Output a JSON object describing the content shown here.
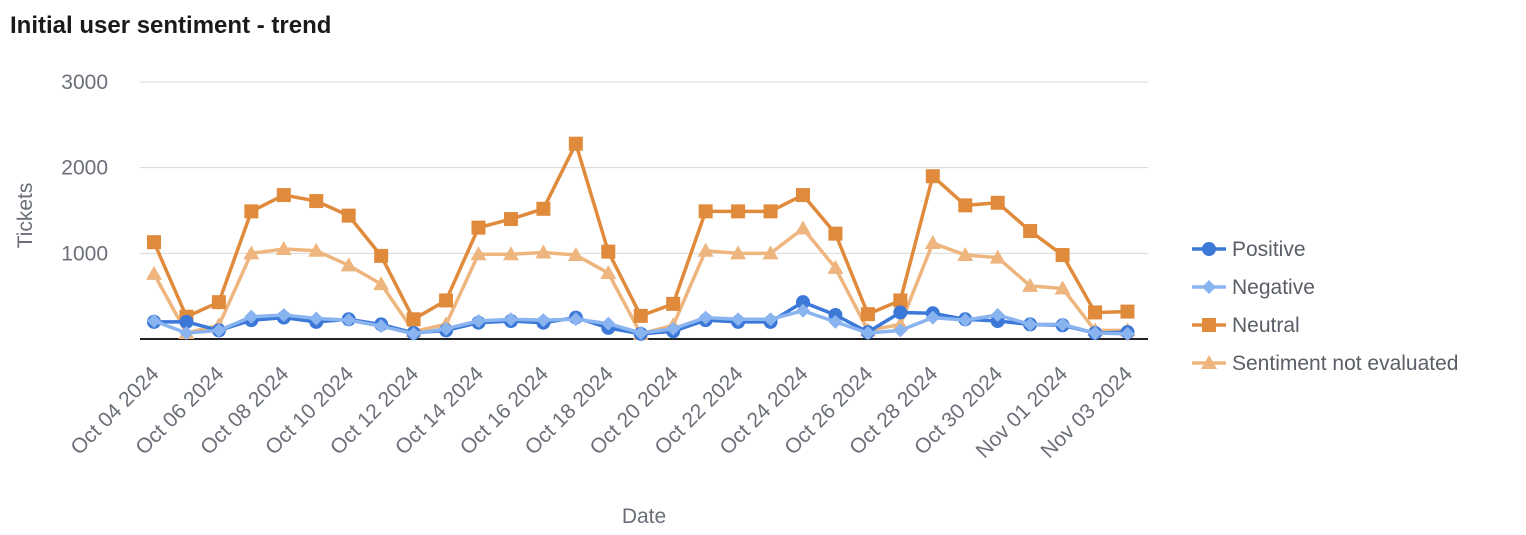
{
  "chart_data": {
    "type": "line",
    "title": "Initial user sentiment - trend",
    "xlabel": "Date",
    "ylabel": "Tickets",
    "ylim": [
      0,
      3000
    ],
    "yticks": [
      1000,
      2000,
      3000
    ],
    "grid": true,
    "legend_position": "right",
    "x": [
      "Oct 04 2024",
      "Oct 05 2024",
      "Oct 06 2024",
      "Oct 07 2024",
      "Oct 08 2024",
      "Oct 09 2024",
      "Oct 10 2024",
      "Oct 11 2024",
      "Oct 12 2024",
      "Oct 13 2024",
      "Oct 14 2024",
      "Oct 15 2024",
      "Oct 16 2024",
      "Oct 17 2024",
      "Oct 18 2024",
      "Oct 19 2024",
      "Oct 20 2024",
      "Oct 21 2024",
      "Oct 22 2024",
      "Oct 23 2024",
      "Oct 24 2024",
      "Oct 25 2024",
      "Oct 26 2024",
      "Oct 27 2024",
      "Oct 28 2024",
      "Oct 29 2024",
      "Oct 30 2024",
      "Oct 31 2024",
      "Nov 01 2024",
      "Nov 02 2024",
      "Nov 03 2024"
    ],
    "xtick_labels": [
      "Oct 04 2024",
      "Oct 06 2024",
      "Oct 08 2024",
      "Oct 10 2024",
      "Oct 12 2024",
      "Oct 14 2024",
      "Oct 16 2024",
      "Oct 18 2024",
      "Oct 20 2024",
      "Oct 22 2024",
      "Oct 24 2024",
      "Oct 26 2024",
      "Oct 28 2024",
      "Oct 30 2024",
      "Nov 01 2024",
      "Nov 03 2024"
    ],
    "series": [
      {
        "name": "Positive",
        "color": "#3b78d8",
        "marker": "circle",
        "values": [
          200,
          200,
          100,
          220,
          250,
          200,
          230,
          170,
          70,
          100,
          190,
          210,
          190,
          250,
          130,
          60,
          90,
          220,
          200,
          200,
          430,
          280,
          80,
          310,
          300,
          230,
          210,
          170,
          160,
          70,
          80
        ]
      },
      {
        "name": "Negative",
        "color": "#8ab4f0",
        "marker": "diamond",
        "values": [
          210,
          70,
          100,
          260,
          280,
          240,
          220,
          150,
          60,
          120,
          210,
          230,
          220,
          230,
          180,
          70,
          120,
          250,
          230,
          230,
          330,
          200,
          70,
          100,
          250,
          220,
          280,
          170,
          170,
          70,
          60
        ]
      },
      {
        "name": "Neutral",
        "color": "#e08a3c",
        "marker": "square",
        "values": [
          1130,
          260,
          430,
          1490,
          1680,
          1610,
          1440,
          970,
          230,
          450,
          1300,
          1400,
          1520,
          2280,
          1020,
          270,
          410,
          1490,
          1490,
          1490,
          1680,
          1230,
          290,
          450,
          1900,
          1560,
          1590,
          1260,
          980,
          310,
          320
        ]
      },
      {
        "name": "Sentiment not evaluated",
        "color": "#eeb57e",
        "marker": "triangle",
        "values": [
          760,
          70,
          160,
          1000,
          1050,
          1030,
          860,
          640,
          90,
          170,
          990,
          990,
          1010,
          980,
          770,
          60,
          160,
          1030,
          1000,
          1000,
          1290,
          830,
          100,
          170,
          1120,
          980,
          950,
          620,
          590,
          100,
          100
        ]
      }
    ]
  }
}
